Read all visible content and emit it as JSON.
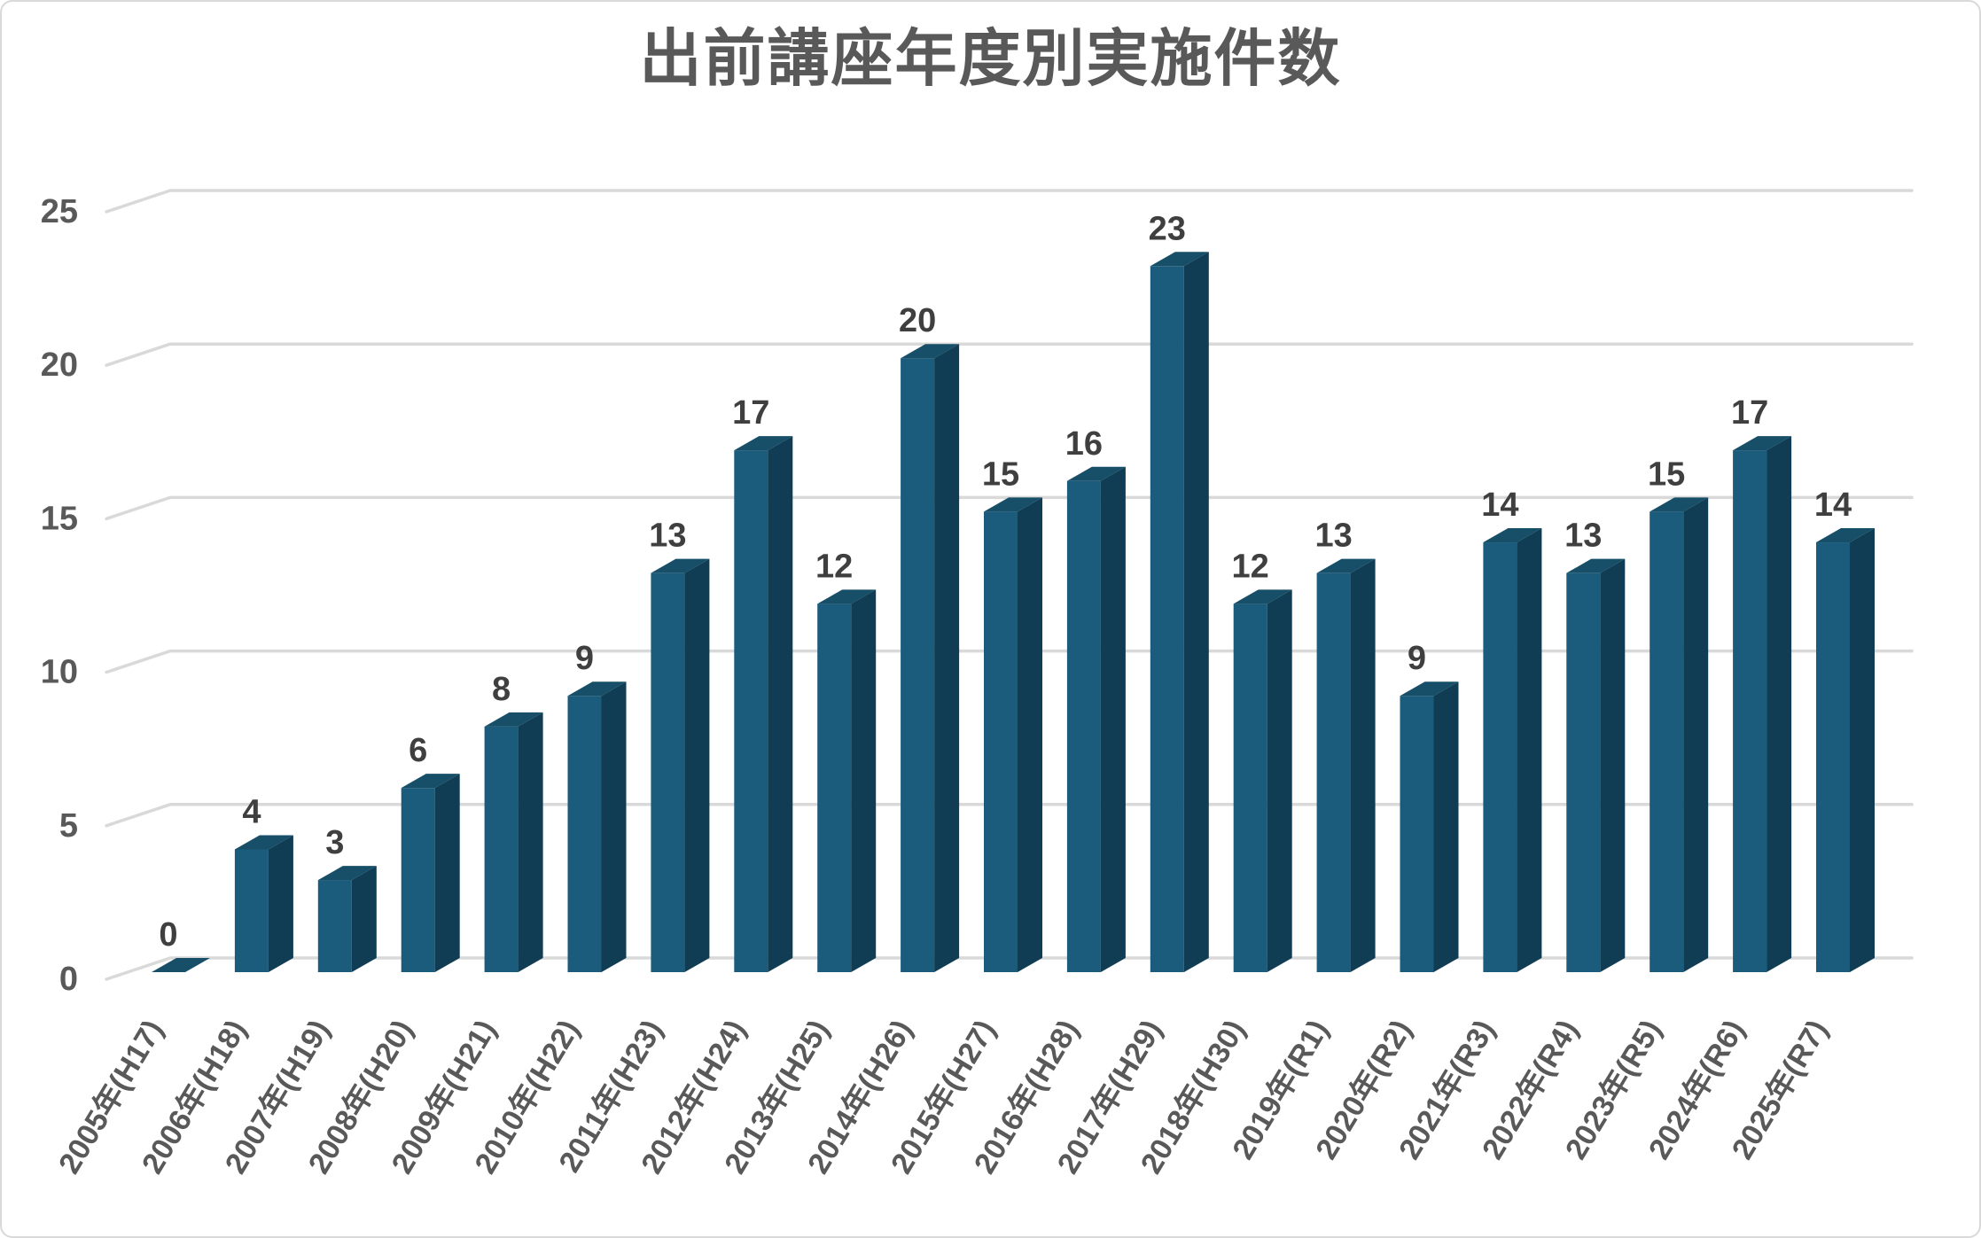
{
  "title": "出前講座年度別実施件数",
  "chart_data": {
    "type": "bar",
    "style": "3d-clustered-column",
    "title": "出前講座年度別実施件数",
    "categories": [
      "2005年(H17)",
      "2006年(H18)",
      "2007年(H19)",
      "2008年(H20)",
      "2009年(H21)",
      "2010年(H22)",
      "2011年(H23)",
      "2012年(H24)",
      "2013年(H25)",
      "2014年(H26)",
      "2015年(H27)",
      "2016年(H28)",
      "2017年(H29)",
      "2018年(H30)",
      "2019年(R1)",
      "2020年(R2)",
      "2021年(R3)",
      "2022年(R4)",
      "2023年(R5)",
      "2024年(R6)",
      "2025年(R7)"
    ],
    "values": [
      0,
      4,
      3,
      6,
      8,
      9,
      13,
      17,
      12,
      20,
      15,
      16,
      23,
      12,
      13,
      9,
      14,
      13,
      15,
      17,
      14
    ],
    "data_labels_shown": true,
    "xlabel": "",
    "ylabel": "",
    "ylim": [
      0,
      25
    ],
    "yticks": [
      0,
      5,
      10,
      15,
      20,
      25
    ],
    "grid": true,
    "legend": false,
    "category_label_rotation_deg": -59,
    "colors": {
      "bar_front": "#1B5B7C",
      "bar_side": "#103D53",
      "bar_top": "#174E68",
      "gridline": "#D9D9D9",
      "data_label": "#3F3F3F",
      "axis_label": "#595959",
      "title": "#595959",
      "border": "#D9D9D9",
      "background": "#FFFFFF"
    }
  }
}
